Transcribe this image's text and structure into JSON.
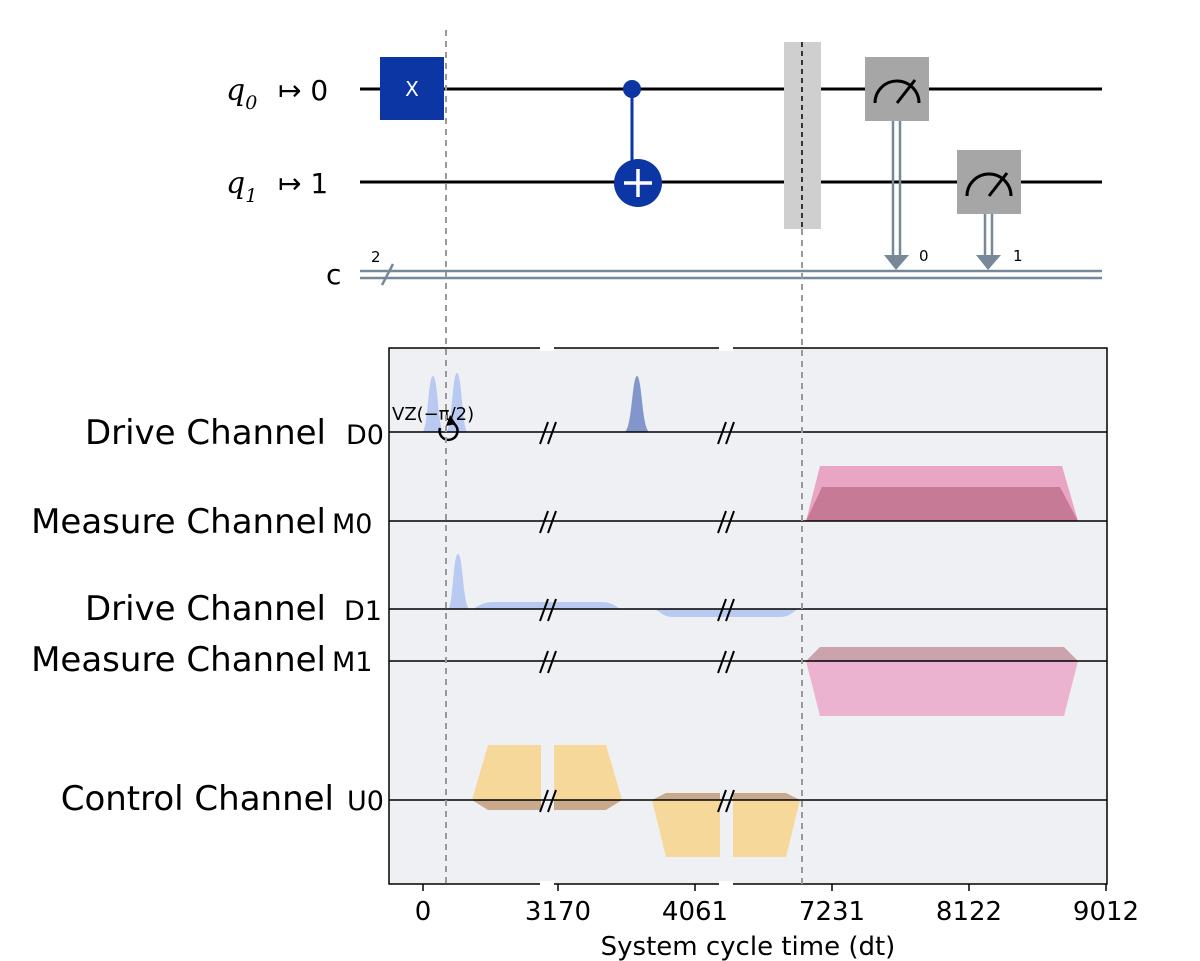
{
  "circuit": {
    "qubits": [
      {
        "label_base": "q",
        "label_sub": "0",
        "maps_to": "↦ 0"
      },
      {
        "label_base": "q",
        "label_sub": "1",
        "maps_to": "↦ 1"
      }
    ],
    "classical": {
      "label": "c",
      "width": "2"
    },
    "x_gate_label": "X",
    "measure_bits": [
      "0",
      "1"
    ],
    "colors": {
      "gate": "#0b36a3",
      "measure": "#a6a6a6",
      "barrier": "#cfcfcf",
      "classical": "#778899"
    }
  },
  "pulse": {
    "channels": [
      {
        "name": "Drive Channel",
        "id": "D0"
      },
      {
        "name": "Measure Channel",
        "id": "M0"
      },
      {
        "name": "Drive Channel",
        "id": "D1"
      },
      {
        "name": "Measure Channel",
        "id": "M1"
      },
      {
        "name": "Control Channel",
        "id": "U0"
      }
    ],
    "vz_annotation": "VZ(−π/2)",
    "x_ticks": [
      "0",
      "3170",
      "4061",
      "7231",
      "8122",
      "9012"
    ],
    "xlabel": "System cycle time (dt)",
    "colors": {
      "drive": "#b8caf2",
      "drive_dark": "#8296cc",
      "measure": "#e9a6c4",
      "measure_dark": "#b96a86",
      "control": "#f6d89a",
      "control_dark": "#c9a98c",
      "panel": "#eef0f3"
    }
  }
}
